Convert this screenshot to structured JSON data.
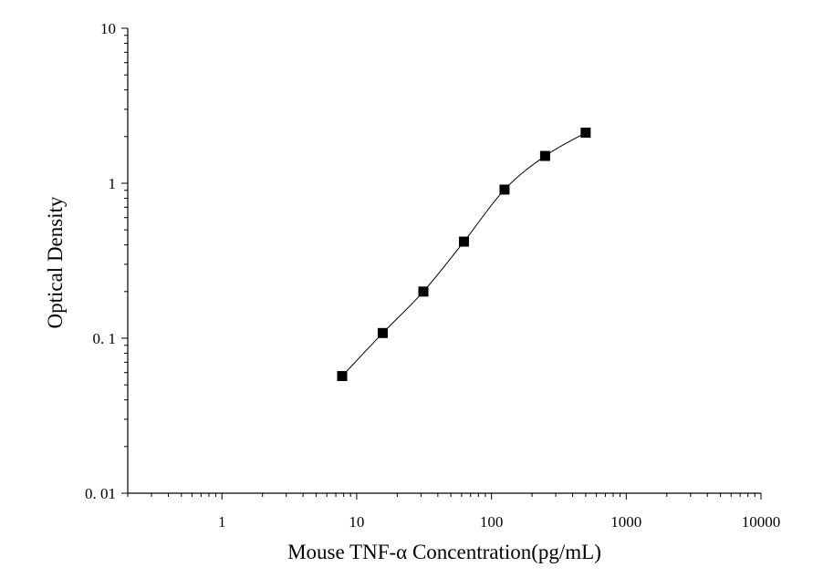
{
  "chart_data": {
    "type": "line",
    "xlabel": "Mouse TNF-α Concentration(pg/mL)",
    "ylabel": "Optical Density",
    "x_scale": "log",
    "y_scale": "log",
    "xlim": [
      0.2,
      10000
    ],
    "ylim": [
      0.01,
      10
    ],
    "x_ticks": [
      1,
      10,
      100,
      1000,
      10000
    ],
    "x_tick_labels": [
      "1",
      "10",
      "100",
      "1000",
      "10000"
    ],
    "y_ticks": [
      0.01,
      0.1,
      1,
      10
    ],
    "y_tick_labels": [
      "0. 01",
      "0. 1",
      "1",
      "10"
    ],
    "grid": false,
    "series": [
      {
        "x": [
          7.8,
          15.6,
          31.25,
          62.5,
          125,
          250,
          500
        ],
        "y": [
          0.057,
          0.108,
          0.2,
          0.42,
          0.91,
          1.5,
          2.12
        ],
        "marker": "square",
        "color": "#000000"
      }
    ]
  }
}
